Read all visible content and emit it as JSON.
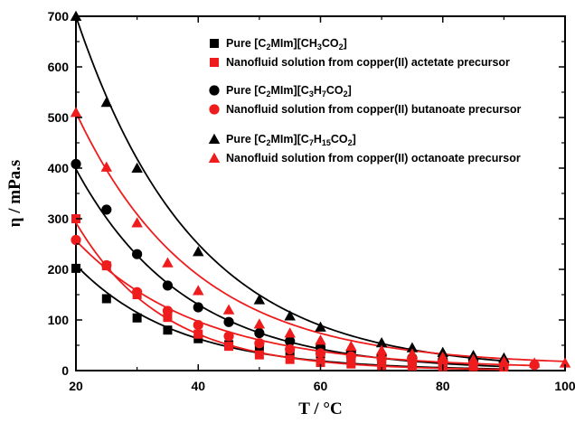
{
  "chart_data": {
    "type": "scatter",
    "xlabel": "T / °C",
    "ylabel": "η / mPa.s",
    "xlim": [
      20,
      100
    ],
    "ylim": [
      0,
      700
    ],
    "xticks": [
      20,
      40,
      60,
      80,
      100
    ],
    "yticks": [
      0,
      100,
      200,
      300,
      400,
      500,
      600,
      700
    ],
    "grid": false,
    "legend_position": "top-right",
    "series": [
      {
        "name": "Pure [C2MIm][CH3CO2]",
        "legend_parts": [
          [
            "Pure [C",
            ""
          ],
          [
            "2",
            "sub"
          ],
          [
            "MIm][CH",
            ""
          ],
          [
            "3",
            "sub"
          ],
          [
            "CO",
            ""
          ],
          [
            "2",
            "sub"
          ],
          [
            "]",
            ""
          ]
        ],
        "color": "#000000",
        "marker": "square",
        "x": [
          20,
          25,
          30,
          35,
          40,
          45,
          50,
          55,
          60,
          65,
          70,
          75,
          80,
          85,
          90
        ],
        "y": [
          202,
          142,
          104,
          80,
          63,
          51,
          42,
          35,
          29,
          25,
          21,
          18,
          15,
          13,
          11
        ],
        "fit": [
          208.4,
          -0.0598,
          0,
          20,
          90
        ]
      },
      {
        "name": "Nanofluid solution from copper(II) actetate precursor",
        "legend_parts": [
          [
            "Nanofluid solution from copper(II) actetate precursor",
            ""
          ]
        ],
        "color": "#ee1c1c",
        "marker": "square",
        "x": [
          20,
          25,
          30,
          35,
          40,
          45,
          50,
          55,
          60,
          65,
          70,
          75,
          80,
          85,
          90
        ],
        "y": [
          300,
          207,
          150,
          105,
          72,
          48,
          31,
          22,
          16,
          13,
          10,
          9,
          8,
          8,
          7
        ],
        "fit": [
          292.3,
          -0.07,
          0,
          20,
          90
        ]
      },
      {
        "name": "Pure [C2MIm][C3H7CO2]",
        "legend_parts": [
          [
            "Pure [C",
            ""
          ],
          [
            "2",
            "sub"
          ],
          [
            "MIm][C",
            ""
          ],
          [
            "3",
            "sub"
          ],
          [
            "H",
            ""
          ],
          [
            "7",
            "sub"
          ],
          [
            "CO",
            ""
          ],
          [
            "2",
            "sub"
          ],
          [
            "]",
            ""
          ]
        ],
        "color": "#000000",
        "marker": "circle",
        "x": [
          20,
          25,
          30,
          35,
          40,
          45,
          50,
          55,
          60,
          65,
          70,
          75,
          80,
          85,
          90
        ],
        "y": [
          408,
          318,
          230,
          168,
          125,
          96,
          74,
          58,
          46,
          37,
          30,
          25,
          21,
          18,
          15
        ],
        "fit": [
          398,
          -0.0558,
          0,
          20,
          90
        ]
      },
      {
        "name": "Nanofluid solution from copper(II) butanoate precursor",
        "legend_parts": [
          [
            "Nanofluid solution from copper(II) butanoate precursor",
            ""
          ]
        ],
        "color": "#ee1c1c",
        "marker": "circle",
        "x": [
          20,
          25,
          30,
          35,
          40,
          45,
          50,
          55,
          60,
          65,
          70,
          75,
          80,
          85,
          90,
          95
        ],
        "y": [
          258,
          208,
          155,
          118,
          90,
          68,
          54,
          42,
          34,
          28,
          23,
          19,
          16,
          14,
          12,
          11
        ],
        "fit": [
          253,
          -0.05,
          4,
          20,
          95
        ]
      },
      {
        "name": "Pure [C2MIm][C7H15CO2]",
        "legend_parts": [
          [
            "Pure [C",
            ""
          ],
          [
            "2",
            "sub"
          ],
          [
            "MIm][C",
            ""
          ],
          [
            "7",
            "sub"
          ],
          [
            "H",
            ""
          ],
          [
            "15",
            "sub"
          ],
          [
            "CO",
            ""
          ],
          [
            "2",
            "sub"
          ],
          [
            "]",
            ""
          ]
        ],
        "color": "#000000",
        "marker": "triangle",
        "x": [
          20,
          25,
          30,
          40,
          50,
          55,
          60,
          70,
          75,
          80,
          85,
          90
        ],
        "y": [
          700,
          530,
          400,
          235,
          140,
          108,
          86,
          55,
          45,
          36,
          30,
          25
        ],
        "fit": [
          700,
          -0.0515,
          0,
          20,
          90
        ]
      },
      {
        "name": "Nanofluid solution from copper(II) octanoate precursor",
        "legend_parts": [
          [
            "Nanofluid solution from copper(II) octanoate precursor",
            ""
          ]
        ],
        "color": "#ee1c1c",
        "marker": "triangle",
        "x": [
          20,
          25,
          30,
          35,
          40,
          45,
          50,
          55,
          60,
          65,
          70,
          75,
          80,
          85,
          90,
          95,
          100
        ],
        "y": [
          510,
          402,
          292,
          213,
          158,
          120,
          92,
          74,
          60,
          48,
          40,
          33,
          27,
          22,
          18,
          15,
          15
        ],
        "fit": [
          500,
          -0.0515,
          10,
          20,
          100
        ]
      }
    ]
  }
}
